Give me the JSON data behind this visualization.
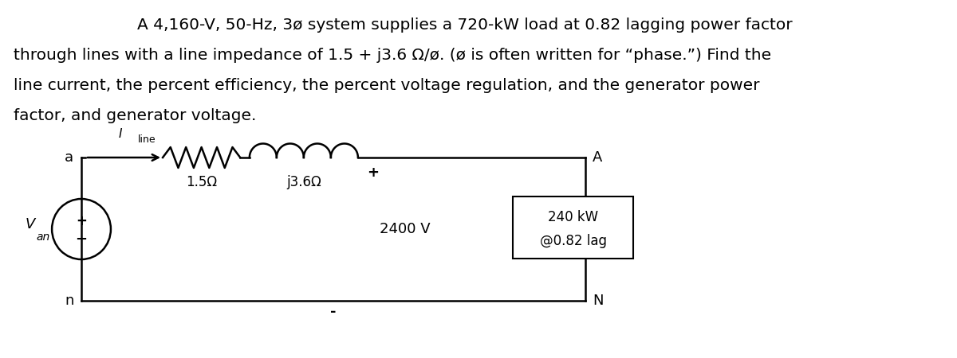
{
  "title_line1": "A 4,160-V, 50-Hz, 3ø system supplies a 720-kW load at 0.82 lagging power factor",
  "title_line2": "through lines with a line impedance of 1.5 + j3.6 Ω/ø. (ø is often written for “phase.”) Find the",
  "title_line3": "line current, the percent efficiency, the percent voltage regulation, and the generator power",
  "title_line4": "factor, and generator voltage.",
  "bg_color": "#ffffff",
  "resistor_label": "1.5Ω",
  "inductor_label": "j3.6Ω",
  "voltage_label": "2400 V",
  "load_label1": "240 kW",
  "load_label2": "@0.82 lag",
  "node_a": "a",
  "node_n": "n",
  "node_A": "A",
  "node_N": "N",
  "current_label": "I",
  "current_sub": "line",
  "plus_top": "+",
  "minus_bot": "-",
  "Van_main": "V",
  "Van_sub": "an",
  "lw": 1.8,
  "title_fontsize": 14.5,
  "label_fontsize": 13,
  "small_fontsize": 10
}
